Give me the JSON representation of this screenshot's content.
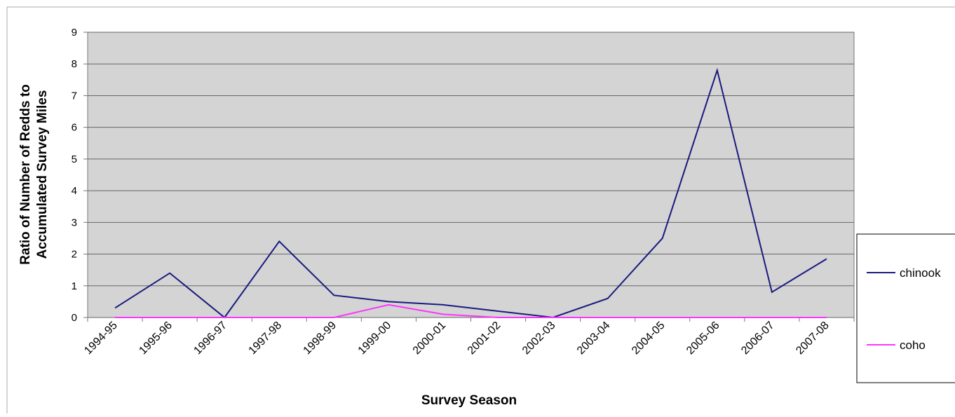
{
  "chart_data": {
    "type": "line",
    "y_label": [
      "Ratio of Number of Redds to",
      "Accumulated Survey Miles"
    ],
    "x_label": "Survey Season",
    "categories": [
      "1994-95",
      "1995-96",
      "1996-97",
      "1997-98",
      "1998-99",
      "1999-00",
      "2000-01",
      "2001-02",
      "2002-03",
      "2003-04",
      "2004-05",
      "2005-06",
      "2006-07",
      "2007-08"
    ],
    "series": [
      {
        "name": "chinook",
        "color": "#1a1a80",
        "values": [
          0.3,
          1.4,
          0,
          2.4,
          0.7,
          0.5,
          0.4,
          0.2,
          0,
          0.6,
          2.5,
          7.8,
          0.8,
          1.85
        ]
      },
      {
        "name": "coho",
        "color": "#ff33ff",
        "values": [
          0,
          0,
          0,
          0,
          0,
          0.4,
          0.1,
          0,
          0,
          0,
          0,
          0,
          0,
          0
        ]
      }
    ],
    "ylim": [
      0,
      9
    ],
    "yticks": [
      0,
      1,
      2,
      3,
      4,
      5,
      6,
      7,
      8,
      9
    ],
    "grid": true
  }
}
